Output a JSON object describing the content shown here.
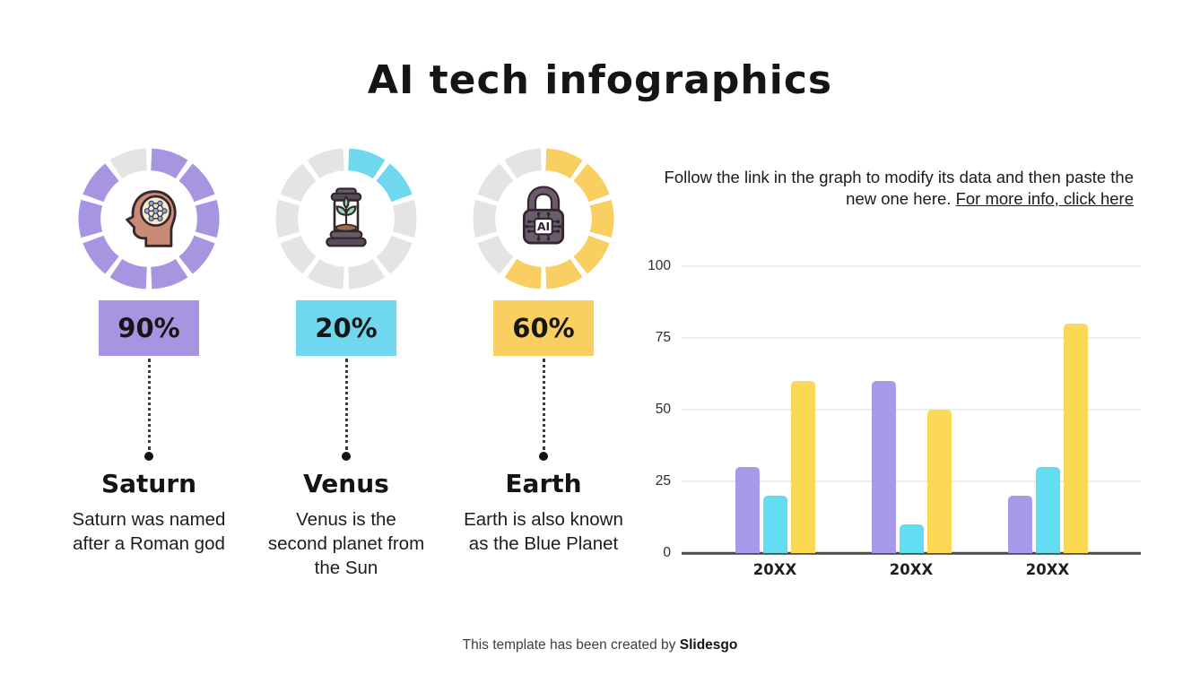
{
  "title": "AI tech infographics",
  "donut": {
    "segments": 10,
    "empty_color": "#e4e4e4"
  },
  "items": [
    {
      "name": "Saturn",
      "percent_label": "90%",
      "value": 90,
      "color": "#a795e1",
      "description": "Saturn was named after a Roman god",
      "icon": "brain-head-icon"
    },
    {
      "name": "Venus",
      "percent_label": "20%",
      "value": 20,
      "color": "#6fd8ee",
      "description": "Venus is the second planet from the Sun",
      "icon": "plant-terrarium-icon"
    },
    {
      "name": "Earth",
      "percent_label": "60%",
      "value": 60,
      "color": "#f8cf60",
      "description": "Earth is also known as the Blue Planet",
      "icon": "ai-lock-icon"
    }
  ],
  "instruction": {
    "text": "Follow the link in the graph to modify its data and then paste the new one here.",
    "link_text": "For more info, click here"
  },
  "chart_data": [
    {
      "type": "bar",
      "title": "",
      "categories": [
        "20XX",
        "20XX",
        "20XX"
      ],
      "series": [
        {
          "name": "series-purple",
          "color": "#a79ae8",
          "values": [
            30,
            60,
            20
          ]
        },
        {
          "name": "series-cyan",
          "color": "#63ddf2",
          "values": [
            20,
            10,
            30
          ]
        },
        {
          "name": "series-yellow",
          "color": "#fbd955",
          "values": [
            60,
            50,
            80
          ]
        }
      ],
      "xlabel": "",
      "ylabel": "",
      "ylim": [
        0,
        100
      ],
      "yticks": [
        0,
        25,
        50,
        75,
        100
      ],
      "grid": true,
      "legend": "none"
    },
    {
      "type": "pie",
      "subtype": "donut-progress-gauges",
      "gauges": [
        {
          "label": "Saturn",
          "value": 90,
          "color": "#a795e1"
        },
        {
          "label": "Venus",
          "value": 20,
          "color": "#6fd8ee"
        },
        {
          "label": "Earth",
          "value": 60,
          "color": "#f8cf60"
        }
      ],
      "segments_per_ring": 10,
      "empty_color": "#e4e4e4"
    }
  ],
  "footer": {
    "text": "This template has been created by",
    "brand": "Slidesgo"
  }
}
